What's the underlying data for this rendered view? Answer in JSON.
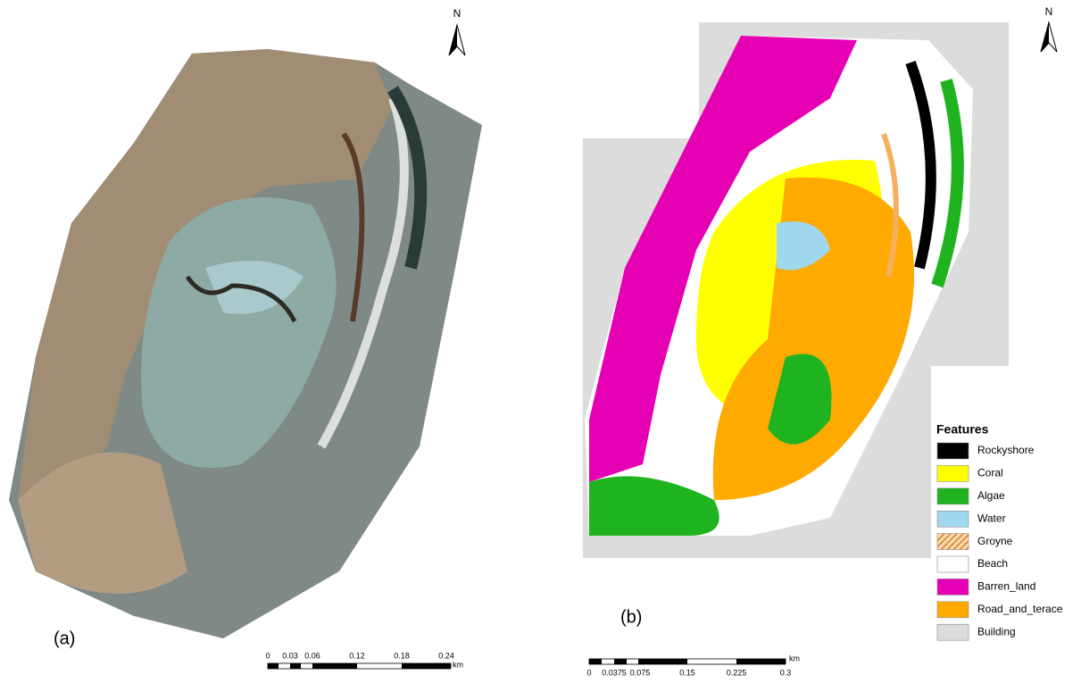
{
  "panel_a": {
    "north": "N",
    "label": "(a)",
    "scale": {
      "labels": [
        "0",
        "0.03",
        "0.06",
        "0.12",
        "0.18",
        "0.24"
      ],
      "unit": "km"
    }
  },
  "panel_b": {
    "north": "N",
    "label": "(b)",
    "scale": {
      "labels": [
        "0",
        "0.0375",
        "0.075",
        "0.15",
        "0.225",
        "0.3"
      ],
      "unit": "km"
    },
    "legend": {
      "title": "Features",
      "items": [
        {
          "name": "Rockyshore",
          "color": "#000000"
        },
        {
          "name": "Coral",
          "color": "#ffff00"
        },
        {
          "name": "Algae",
          "color": "#1fb41f"
        },
        {
          "name": "Water",
          "color": "#9fd8ee"
        },
        {
          "name": "Groyne",
          "color": "#f4b060"
        },
        {
          "name": "Beach",
          "color": "#ffffff"
        },
        {
          "name": "Barren_land",
          "color": "#e600b4"
        },
        {
          "name": "Road_and_terace",
          "color": "#ffaa00"
        },
        {
          "name": "Building",
          "color": "#dcdcdc"
        }
      ]
    }
  }
}
